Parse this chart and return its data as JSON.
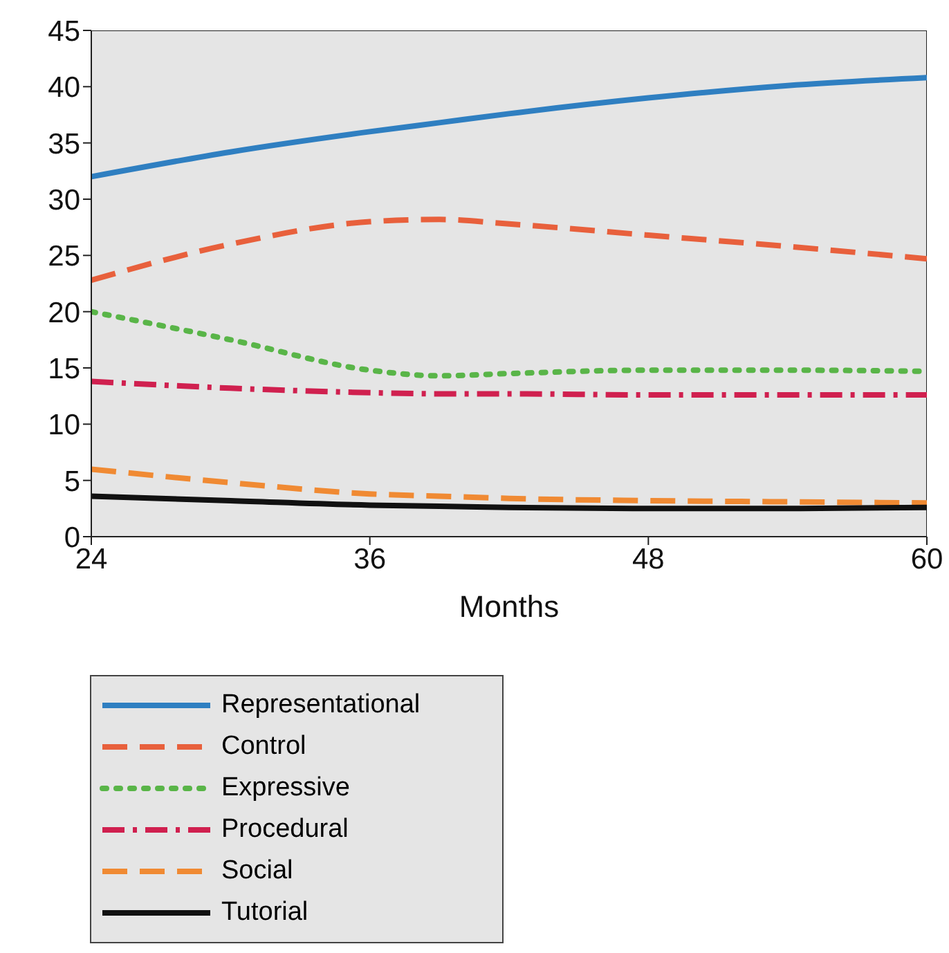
{
  "chart_data": {
    "type": "line",
    "xlabel": "Months",
    "x": [
      24,
      30,
      36,
      39,
      42,
      48,
      54,
      60
    ],
    "series": [
      {
        "name": "Representational",
        "color": "#2f7fc1",
        "line_style": "solid",
        "values": [
          32,
          34.2,
          36,
          36.8,
          37.6,
          39,
          40.1,
          40.8
        ]
      },
      {
        "name": "Control",
        "color": "#e8603c",
        "line_style": "dashed",
        "values": [
          22.8,
          26,
          28,
          28.2,
          27.8,
          26.8,
          25.8,
          24.7
        ]
      },
      {
        "name": "Expressive",
        "color": "#59b548",
        "line_style": "dotted",
        "values": [
          20,
          17.5,
          14.8,
          14.3,
          14.5,
          14.8,
          14.8,
          14.7
        ]
      },
      {
        "name": "Procedural",
        "color": "#d0204f",
        "line_style": "dashdot",
        "values": [
          13.8,
          13.2,
          12.8,
          12.7,
          12.7,
          12.6,
          12.6,
          12.6
        ]
      },
      {
        "name": "Social",
        "color": "#f08a33",
        "line_style": "dashed",
        "values": [
          6,
          4.8,
          3.8,
          3.6,
          3.4,
          3.2,
          3.1,
          3
        ]
      },
      {
        "name": "Tutorial",
        "color": "#111111",
        "line_style": "solid",
        "values": [
          3.6,
          3.2,
          2.8,
          2.7,
          2.6,
          2.5,
          2.5,
          2.6
        ]
      }
    ],
    "xlim": [
      24,
      60
    ],
    "xticks": [
      24,
      36,
      48,
      60
    ],
    "ylim": [
      0,
      45
    ],
    "yticks": [
      0,
      5,
      10,
      15,
      20,
      25,
      30,
      35,
      40,
      45
    ],
    "grid": false,
    "legend": "bottom left",
    "marker": "none"
  }
}
